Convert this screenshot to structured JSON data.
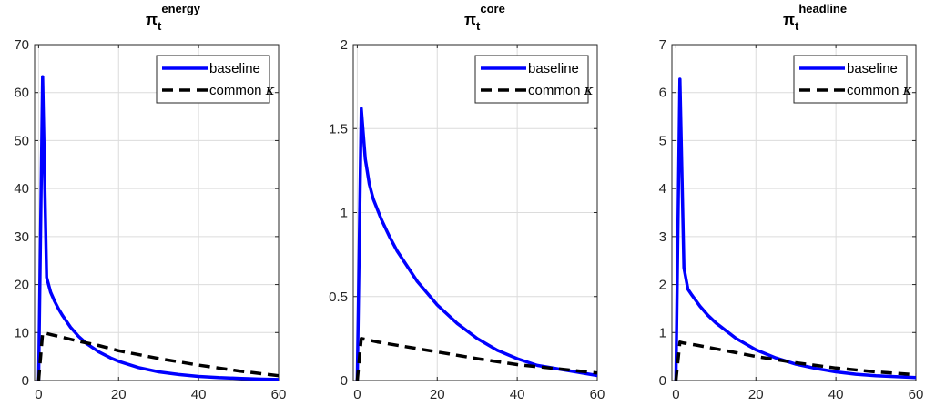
{
  "chart_data": [
    {
      "type": "line",
      "title": {
        "base": "π",
        "sub": "t",
        "sup": "energy"
      },
      "xlim": [
        -1,
        60
      ],
      "ylim": [
        0,
        70
      ],
      "xticks": [
        0,
        20,
        40,
        60
      ],
      "yticks": [
        0,
        10,
        20,
        30,
        40,
        50,
        60,
        70
      ],
      "grid": true,
      "legend_position": "top-right",
      "series": [
        {
          "name": "baseline",
          "color": "#0000ff",
          "dash": "solid",
          "x": [
            0,
            1,
            2,
            3,
            4,
            5,
            6,
            8,
            10,
            12,
            15,
            18,
            20,
            25,
            30,
            35,
            40,
            45,
            50,
            55,
            60
          ],
          "y": [
            0,
            63.3,
            21.5,
            18.4,
            16.5,
            14.9,
            13.5,
            11.1,
            9.2,
            7.7,
            6.0,
            4.7,
            4.0,
            2.7,
            1.8,
            1.25,
            0.85,
            0.6,
            0.45,
            0.3,
            0.2
          ]
        },
        {
          "name": "common κ",
          "label_text": "common",
          "label_symbol": "κ",
          "color": "#000000",
          "dash": "dashed",
          "x": [
            0,
            1,
            2,
            3,
            5,
            10,
            15,
            20,
            30,
            40,
            50,
            60
          ],
          "y": [
            0,
            9.9,
            9.8,
            9.6,
            9.2,
            8.2,
            7.3,
            6.2,
            4.6,
            3.2,
            2.0,
            1.0
          ]
        }
      ]
    },
    {
      "type": "line",
      "title": {
        "base": "π",
        "sub": "t",
        "sup": "core"
      },
      "xlim": [
        -1,
        60
      ],
      "ylim": [
        0,
        2
      ],
      "xticks": [
        0,
        20,
        40,
        60
      ],
      "yticks": [
        0,
        0.5,
        1,
        1.5,
        2
      ],
      "grid": true,
      "legend_position": "top-right",
      "series": [
        {
          "name": "baseline",
          "color": "#0000ff",
          "dash": "solid",
          "x": [
            0,
            1,
            2,
            3,
            4,
            6,
            8,
            10,
            15,
            20,
            25,
            30,
            35,
            40,
            45,
            50,
            55,
            60
          ],
          "y": [
            0,
            1.62,
            1.32,
            1.17,
            1.08,
            0.96,
            0.86,
            0.77,
            0.59,
            0.45,
            0.34,
            0.25,
            0.18,
            0.13,
            0.09,
            0.07,
            0.05,
            0.03
          ]
        },
        {
          "name": "common κ",
          "label_text": "common",
          "label_symbol": "κ",
          "color": "#000000",
          "dash": "dashed",
          "x": [
            0,
            1,
            2,
            5,
            10,
            20,
            30,
            40,
            50,
            60
          ],
          "y": [
            0,
            0.25,
            0.245,
            0.23,
            0.21,
            0.17,
            0.13,
            0.095,
            0.07,
            0.045
          ]
        }
      ]
    },
    {
      "type": "line",
      "title": {
        "base": "π",
        "sub": "t",
        "sup": "headline"
      },
      "xlim": [
        -1,
        60
      ],
      "ylim": [
        0,
        7
      ],
      "xticks": [
        0,
        20,
        40,
        60
      ],
      "yticks": [
        0,
        1,
        2,
        3,
        4,
        5,
        6,
        7
      ],
      "grid": true,
      "legend_position": "top-right",
      "series": [
        {
          "name": "baseline",
          "color": "#0000ff",
          "dash": "solid",
          "x": [
            0,
            1,
            2,
            3,
            4,
            6,
            8,
            10,
            15,
            20,
            25,
            30,
            35,
            40,
            45,
            50,
            55,
            60
          ],
          "y": [
            0,
            6.28,
            2.35,
            1.9,
            1.78,
            1.55,
            1.36,
            1.2,
            0.88,
            0.64,
            0.47,
            0.34,
            0.25,
            0.18,
            0.13,
            0.1,
            0.08,
            0.06
          ]
        },
        {
          "name": "common κ",
          "label_text": "common",
          "label_symbol": "κ",
          "color": "#000000",
          "dash": "dashed",
          "x": [
            0,
            1,
            2,
            5,
            10,
            20,
            30,
            40,
            50,
            60
          ],
          "y": [
            0,
            0.8,
            0.78,
            0.74,
            0.66,
            0.5,
            0.37,
            0.26,
            0.18,
            0.12
          ]
        }
      ]
    }
  ]
}
